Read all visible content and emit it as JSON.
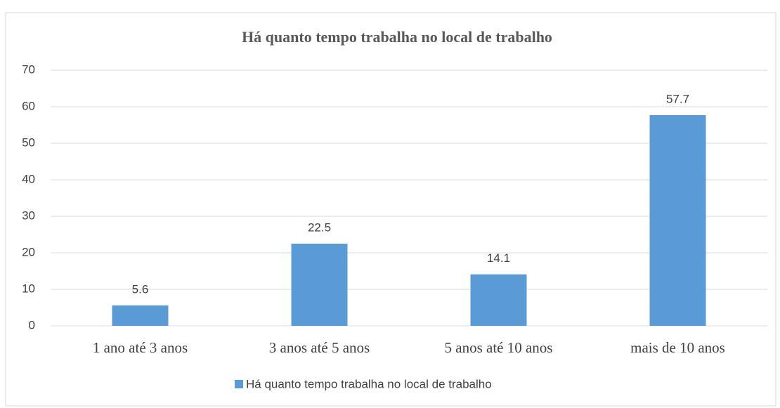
{
  "chart_data": {
    "type": "bar",
    "title": "Há quanto tempo trabalha no local de trabalho",
    "categories": [
      "1 ano até 3 anos",
      "3 anos até 5 anos",
      "5 anos até 10 anos",
      "mais de 10 anos"
    ],
    "series": [
      {
        "name": "Há quanto tempo trabalha no local de trabalho",
        "color": "#5b9bd5",
        "values": [
          5.6,
          22.5,
          14.1,
          57.7
        ]
      }
    ],
    "ylim": [
      0,
      70
    ],
    "yticks": [
      0,
      10,
      20,
      30,
      40,
      50,
      60,
      70
    ],
    "grid": true,
    "legend": "bottom"
  }
}
